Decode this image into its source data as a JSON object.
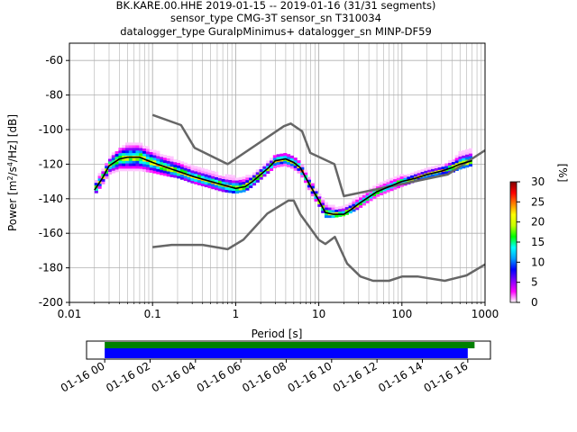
{
  "title": {
    "line1": "BK.KARE.00.HHE   2019-01-15 -- 2019-01-16  (31/31 segments)",
    "line2": "sensor_type CMG-3T sensor_sn T310034",
    "line3": "datalogger_type GuralpMinimus+ datalogger_sn MINP-DF59"
  },
  "chart_data": {
    "type": "heatmap",
    "subtype": "probabilistic power spectral density",
    "x_scale": "log",
    "xlim": [
      0.01,
      1000
    ],
    "ylim": [
      -200,
      -50
    ],
    "xlabel": "Period [s]",
    "ylabel_parts": {
      "pre": "Power [m",
      "sup1": "2",
      "mid": "/s",
      "sup2": "4",
      "post": "/Hz] [dB]"
    },
    "x_tick_labels": [
      {
        "value": 0.01,
        "label": "0.01"
      },
      {
        "value": 0.1,
        "label": "0.1"
      },
      {
        "value": 1,
        "label": "1"
      },
      {
        "value": 10,
        "label": "10"
      },
      {
        "value": 100,
        "label": "100"
      },
      {
        "value": 1000,
        "label": "1000"
      }
    ],
    "y_ticks": [
      -200,
      -180,
      -160,
      -140,
      -120,
      -100,
      -80,
      -60
    ],
    "grid": true,
    "colorbar": {
      "label": "[%]",
      "min": 0,
      "max": 30,
      "ticks": [
        0,
        5,
        10,
        15,
        20,
        25,
        30
      ],
      "colormap": [
        "#ffffff",
        "#ff00ff",
        "#8000ff",
        "#0000ff",
        "#00a0ff",
        "#00ffff",
        "#00ff00",
        "#c8ff00",
        "#ffff00",
        "#ff8000",
        "#ff0000",
        "#800000"
      ]
    },
    "mean_curve": {
      "color": "#000000",
      "x": [
        0.02,
        0.025,
        0.03,
        0.04,
        0.05,
        0.07,
        0.1,
        0.15,
        0.2,
        0.3,
        0.5,
        0.7,
        1.0,
        1.3,
        1.6,
        2.0,
        2.5,
        3.0,
        4.0,
        5.0,
        6.0,
        7.0,
        8.0,
        10,
        12,
        15,
        20,
        25,
        30,
        40,
        50,
        70,
        100,
        150,
        200,
        300,
        400,
        500,
        700
      ],
      "y": [
        -135,
        -128,
        -121,
        -117,
        -116,
        -116,
        -119,
        -122,
        -124,
        -127,
        -130,
        -132,
        -134,
        -133,
        -130,
        -126,
        -122,
        -118,
        -117,
        -119,
        -122,
        -128,
        -133,
        -141,
        -148,
        -149,
        -149,
        -146,
        -143,
        -139,
        -136,
        -133,
        -130,
        -128,
        -126,
        -124,
        -122,
        -120,
        -118
      ]
    },
    "pdf_band": {
      "x": [
        0.02,
        0.025,
        0.03,
        0.04,
        0.05,
        0.07,
        0.1,
        0.15,
        0.2,
        0.3,
        0.5,
        0.7,
        1.0,
        1.3,
        1.6,
        2.0,
        2.5,
        3.0,
        4.0,
        5.0,
        6.0,
        7.0,
        8.0,
        10,
        12,
        15,
        20,
        25,
        30,
        40,
        50,
        70,
        100,
        150,
        200,
        300,
        400,
        500,
        700
      ],
      "upper": [
        -131,
        -124,
        -117,
        -111,
        -108,
        -108,
        -112,
        -116,
        -118,
        -122,
        -125,
        -127,
        -128,
        -128,
        -126,
        -122,
        -118,
        -115,
        -115,
        -117,
        -120,
        -125,
        -130,
        -137,
        -143,
        -145,
        -145,
        -142,
        -140,
        -136,
        -133,
        -130,
        -127,
        -125,
        -123,
        -121,
        -118,
        -114,
        -112
      ],
      "lower": [
        -138,
        -132,
        -126,
        -124,
        -124,
        -124,
        -125,
        -127,
        -128,
        -131,
        -134,
        -136,
        -137,
        -136,
        -133,
        -129,
        -125,
        -122,
        -121,
        -123,
        -126,
        -131,
        -137,
        -144,
        -151,
        -151,
        -150,
        -148,
        -146,
        -142,
        -139,
        -136,
        -133,
        -130,
        -128,
        -126,
        -125,
        -123,
        -121
      ]
    },
    "noise_models": [
      {
        "name": "high",
        "color": "#666666",
        "x": [
          0.1,
          0.22,
          0.32,
          0.8,
          3.8,
          4.6,
          6.3,
          7.9,
          15.4,
          20,
          354.8,
          1000
        ],
        "y": [
          -91.5,
          -97.4,
          -110.5,
          -120,
          -98,
          -96.5,
          -101,
          -113.5,
          -120,
          -138.5,
          -126,
          -112
        ]
      },
      {
        "name": "low",
        "color": "#666666",
        "x": [
          0.1,
          0.17,
          0.4,
          0.8,
          1.24,
          2.4,
          4.3,
          5.0,
          6.0,
          10,
          12,
          15.6,
          21.9,
          31.6,
          45,
          70,
          101,
          154,
          328,
          600,
          1000
        ],
        "y": [
          -168,
          -166.7,
          -166.7,
          -169.2,
          -163.7,
          -148.6,
          -141.1,
          -141.1,
          -149,
          -163.8,
          -166.2,
          -162.1,
          -177.5,
          -185,
          -187.5,
          -187.5,
          -185,
          -185,
          -187.5,
          -184.4,
          -178
        ]
      }
    ]
  },
  "timeline": {
    "tick_labels": [
      "01-16 00",
      "01-16 02",
      "01-16 04",
      "01-16 06",
      "01-16 08",
      "01-16 10",
      "01-16 12",
      "01-16 14",
      "01-16 16"
    ],
    "tick_hours": [
      0,
      2,
      4,
      6,
      8,
      10,
      12,
      14,
      16
    ],
    "axis_range_hours": [
      -0.8,
      17
    ],
    "bars": [
      {
        "name": "data coverage",
        "color": "#008000",
        "start_hours": 0,
        "end_hours": 16.3
      },
      {
        "name": "PSD segments",
        "color": "#0000ff",
        "start_hours": 0,
        "end_hours": 16.0
      }
    ]
  }
}
